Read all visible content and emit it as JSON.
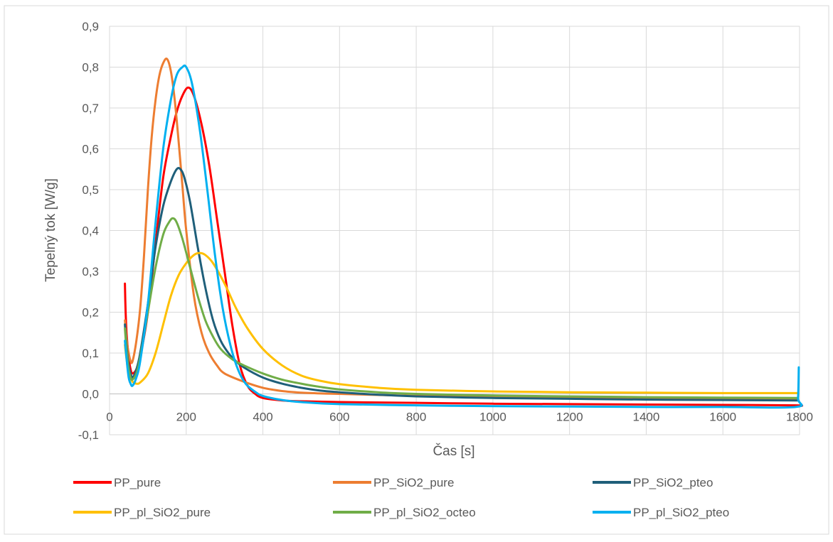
{
  "chart_data": {
    "type": "line",
    "title": "",
    "xlabel": "Čas [s]",
    "ylabel": "Tepelný tok [W/g]",
    "xlim": [
      0,
      1800
    ],
    "ylim": [
      -0.1,
      0.9
    ],
    "x_ticks": [
      0,
      200,
      400,
      600,
      800,
      1000,
      1200,
      1400,
      1600,
      1800
    ],
    "y_ticks": [
      -0.1,
      0.0,
      0.1,
      0.2,
      0.3,
      0.4,
      0.5,
      0.6,
      0.7,
      0.8,
      0.9
    ],
    "x_tick_labels": [
      "0",
      "200",
      "400",
      "600",
      "800",
      "1000",
      "1200",
      "1400",
      "1600",
      "1800"
    ],
    "y_tick_labels": [
      "-0,1",
      "0,0",
      "0,1",
      "0,2",
      "0,3",
      "0,4",
      "0,5",
      "0,6",
      "0,7",
      "0,8",
      "0,9"
    ],
    "grid": true,
    "legend_position": "bottom",
    "series": [
      {
        "name": "PP_pure",
        "color": "#ff0000",
        "points": [
          [
            40,
            0.27
          ],
          [
            42,
            0.2
          ],
          [
            45,
            0.14
          ],
          [
            50,
            0.09
          ],
          [
            55,
            0.06
          ],
          [
            60,
            0.05
          ],
          [
            70,
            0.06
          ],
          [
            80,
            0.09
          ],
          [
            100,
            0.2
          ],
          [
            120,
            0.37
          ],
          [
            140,
            0.53
          ],
          [
            160,
            0.63
          ],
          [
            175,
            0.69
          ],
          [
            190,
            0.73
          ],
          [
            205,
            0.75
          ],
          [
            220,
            0.73
          ],
          [
            240,
            0.66
          ],
          [
            260,
            0.56
          ],
          [
            280,
            0.43
          ],
          [
            300,
            0.3
          ],
          [
            320,
            0.17
          ],
          [
            340,
            0.07
          ],
          [
            360,
            0.02
          ],
          [
            380,
            0.0
          ],
          [
            400,
            -0.01
          ],
          [
            450,
            -0.016
          ],
          [
            500,
            -0.018
          ],
          [
            600,
            -0.02
          ],
          [
            800,
            -0.022
          ],
          [
            1000,
            -0.024
          ],
          [
            1200,
            -0.025
          ],
          [
            1400,
            -0.026
          ],
          [
            1600,
            -0.027
          ],
          [
            1790,
            -0.028
          ],
          [
            1798,
            -0.03
          ]
        ]
      },
      {
        "name": "PP_SiO2_pure",
        "color": "#ed7d31",
        "points": [
          [
            40,
            0.18
          ],
          [
            45,
            0.13
          ],
          [
            50,
            0.1
          ],
          [
            55,
            0.08
          ],
          [
            60,
            0.08
          ],
          [
            70,
            0.13
          ],
          [
            80,
            0.21
          ],
          [
            90,
            0.34
          ],
          [
            100,
            0.5
          ],
          [
            110,
            0.63
          ],
          [
            120,
            0.72
          ],
          [
            130,
            0.78
          ],
          [
            140,
            0.81
          ],
          [
            150,
            0.82
          ],
          [
            160,
            0.79
          ],
          [
            170,
            0.72
          ],
          [
            180,
            0.62
          ],
          [
            190,
            0.51
          ],
          [
            200,
            0.4
          ],
          [
            220,
            0.24
          ],
          [
            240,
            0.15
          ],
          [
            260,
            0.1
          ],
          [
            280,
            0.07
          ],
          [
            300,
            0.05
          ],
          [
            350,
            0.03
          ],
          [
            400,
            0.015
          ],
          [
            450,
            0.007
          ],
          [
            500,
            0.003
          ],
          [
            550,
            0.001
          ],
          [
            600,
            0.0
          ],
          [
            800,
            -0.005
          ],
          [
            1000,
            -0.008
          ],
          [
            1200,
            -0.01
          ],
          [
            1400,
            -0.011
          ],
          [
            1600,
            -0.012
          ],
          [
            1795,
            -0.013
          ]
        ]
      },
      {
        "name": "PP_SiO2_pteo",
        "color": "#1f5f7a",
        "points": [
          [
            40,
            0.17
          ],
          [
            45,
            0.11
          ],
          [
            50,
            0.07
          ],
          [
            55,
            0.05
          ],
          [
            60,
            0.04
          ],
          [
            70,
            0.06
          ],
          [
            80,
            0.1
          ],
          [
            100,
            0.22
          ],
          [
            120,
            0.36
          ],
          [
            140,
            0.46
          ],
          [
            160,
            0.52
          ],
          [
            175,
            0.55
          ],
          [
            185,
            0.55
          ],
          [
            195,
            0.53
          ],
          [
            210,
            0.47
          ],
          [
            230,
            0.36
          ],
          [
            250,
            0.26
          ],
          [
            270,
            0.18
          ],
          [
            290,
            0.13
          ],
          [
            310,
            0.1
          ],
          [
            330,
            0.08
          ],
          [
            350,
            0.065
          ],
          [
            400,
            0.04
          ],
          [
            450,
            0.025
          ],
          [
            500,
            0.015
          ],
          [
            550,
            0.008
          ],
          [
            600,
            0.004
          ],
          [
            700,
            -0.002
          ],
          [
            800,
            -0.006
          ],
          [
            1000,
            -0.01
          ],
          [
            1200,
            -0.012
          ],
          [
            1400,
            -0.014
          ],
          [
            1600,
            -0.015
          ],
          [
            1795,
            -0.016
          ]
        ]
      },
      {
        "name": "PP_pl_SiO2_pure",
        "color": "#ffc000",
        "points": [
          [
            40,
            0.12
          ],
          [
            45,
            0.08
          ],
          [
            50,
            0.05
          ],
          [
            60,
            0.03
          ],
          [
            70,
            0.025
          ],
          [
            80,
            0.028
          ],
          [
            100,
            0.05
          ],
          [
            120,
            0.1
          ],
          [
            140,
            0.17
          ],
          [
            160,
            0.24
          ],
          [
            180,
            0.29
          ],
          [
            200,
            0.32
          ],
          [
            220,
            0.34
          ],
          [
            235,
            0.345
          ],
          [
            250,
            0.34
          ],
          [
            270,
            0.32
          ],
          [
            300,
            0.27
          ],
          [
            330,
            0.21
          ],
          [
            360,
            0.16
          ],
          [
            400,
            0.11
          ],
          [
            450,
            0.07
          ],
          [
            500,
            0.045
          ],
          [
            550,
            0.032
          ],
          [
            600,
            0.024
          ],
          [
            700,
            0.015
          ],
          [
            800,
            0.01
          ],
          [
            1000,
            0.006
          ],
          [
            1200,
            0.004
          ],
          [
            1400,
            0.003
          ],
          [
            1600,
            0.002
          ],
          [
            1795,
            0.002
          ]
        ]
      },
      {
        "name": "PP_pl_SiO2_octeo",
        "color": "#70ad47",
        "points": [
          [
            40,
            0.16
          ],
          [
            45,
            0.1
          ],
          [
            50,
            0.06
          ],
          [
            55,
            0.04
          ],
          [
            60,
            0.035
          ],
          [
            70,
            0.05
          ],
          [
            80,
            0.09
          ],
          [
            100,
            0.2
          ],
          [
            120,
            0.31
          ],
          [
            140,
            0.39
          ],
          [
            155,
            0.42
          ],
          [
            165,
            0.43
          ],
          [
            175,
            0.42
          ],
          [
            190,
            0.38
          ],
          [
            210,
            0.31
          ],
          [
            230,
            0.24
          ],
          [
            250,
            0.18
          ],
          [
            270,
            0.14
          ],
          [
            290,
            0.11
          ],
          [
            320,
            0.085
          ],
          [
            350,
            0.07
          ],
          [
            400,
            0.05
          ],
          [
            450,
            0.035
          ],
          [
            500,
            0.025
          ],
          [
            550,
            0.017
          ],
          [
            600,
            0.011
          ],
          [
            700,
            0.004
          ],
          [
            800,
            0.0
          ],
          [
            1000,
            -0.004
          ],
          [
            1200,
            -0.006
          ],
          [
            1400,
            -0.008
          ],
          [
            1600,
            -0.009
          ],
          [
            1795,
            -0.01
          ]
        ]
      },
      {
        "name": "PP_pl_SiO2_pteo",
        "color": "#00b0f0",
        "points": [
          [
            40,
            0.13
          ],
          [
            45,
            0.08
          ],
          [
            50,
            0.04
          ],
          [
            55,
            0.025
          ],
          [
            60,
            0.02
          ],
          [
            70,
            0.04
          ],
          [
            80,
            0.08
          ],
          [
            100,
            0.22
          ],
          [
            120,
            0.42
          ],
          [
            140,
            0.6
          ],
          [
            160,
            0.72
          ],
          [
            175,
            0.78
          ],
          [
            190,
            0.8
          ],
          [
            200,
            0.8
          ],
          [
            215,
            0.76
          ],
          [
            235,
            0.65
          ],
          [
            255,
            0.5
          ],
          [
            275,
            0.34
          ],
          [
            295,
            0.21
          ],
          [
            315,
            0.12
          ],
          [
            335,
            0.06
          ],
          [
            355,
            0.025
          ],
          [
            380,
            0.005
          ],
          [
            400,
            -0.005
          ],
          [
            450,
            -0.015
          ],
          [
            500,
            -0.02
          ],
          [
            600,
            -0.025
          ],
          [
            800,
            -0.028
          ],
          [
            1000,
            -0.03
          ],
          [
            1200,
            -0.031
          ],
          [
            1400,
            -0.032
          ],
          [
            1600,
            -0.032
          ],
          [
            1790,
            -0.032
          ],
          [
            1796,
            -0.01
          ],
          [
            1798,
            0.065
          ]
        ]
      }
    ]
  }
}
